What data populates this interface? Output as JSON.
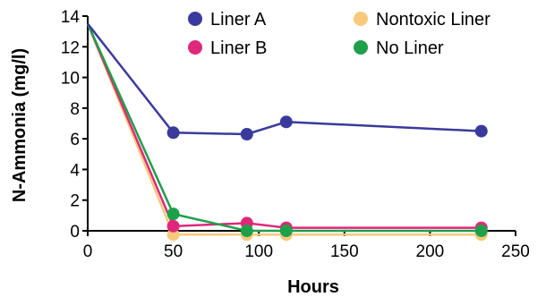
{
  "chart_data": {
    "type": "line",
    "title": "",
    "xlabel": "Hours",
    "ylabel": "N-Ammonia (mg/l)",
    "xlim": [
      0,
      250
    ],
    "ylim": [
      0,
      14
    ],
    "xticks": [
      0,
      50,
      100,
      150,
      200,
      250
    ],
    "yticks": [
      0,
      2,
      4,
      6,
      8,
      10,
      12,
      14
    ],
    "grid": false,
    "legend_position": "top",
    "series": [
      {
        "name": "Liner A",
        "color": "#3a3a9c",
        "x": [
          0,
          50,
          93,
          116,
          230
        ],
        "y": [
          13.5,
          6.4,
          6.3,
          7.1,
          6.5
        ]
      },
      {
        "name": "Liner B",
        "color": "#e0287a",
        "x": [
          0,
          50,
          93,
          116,
          230
        ],
        "y": [
          13.5,
          0.3,
          0.5,
          0.2,
          0.2
        ]
      },
      {
        "name": "Nontoxic Liner",
        "color": "#f7c97a",
        "x": [
          0,
          50,
          93,
          116,
          230
        ],
        "y": [
          13.5,
          -0.25,
          -0.25,
          -0.25,
          -0.25
        ]
      },
      {
        "name": "No Liner",
        "color": "#1ea04a",
        "x": [
          0,
          50,
          93,
          116,
          230
        ],
        "y": [
          13.5,
          1.1,
          0.0,
          0.0,
          0.0
        ]
      }
    ],
    "draw_order": [
      "Nontoxic Liner",
      "Liner B",
      "No Liner",
      "Liner A"
    ]
  }
}
